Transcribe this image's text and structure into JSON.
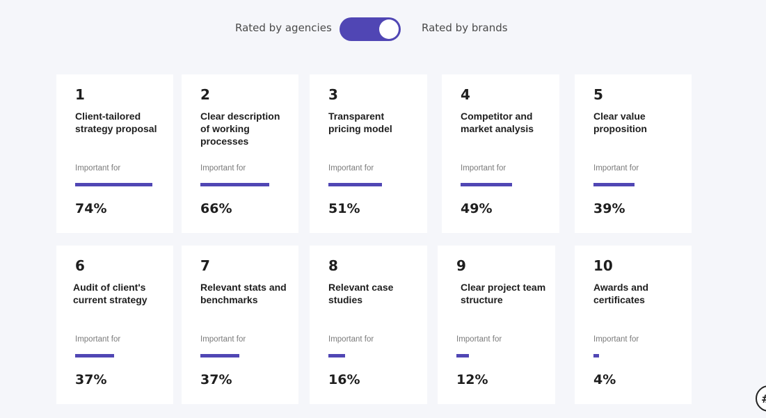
{
  "toggle": {
    "left_label": "Rated by agencies",
    "right_label": "Rated by brands",
    "state": "brands",
    "accent": "#5046b4"
  },
  "cards": [
    {
      "rank": "1",
      "title": "Client-tailored strategy proposal",
      "important_label": "Important for",
      "value": 74,
      "pct_text": "74%"
    },
    {
      "rank": "2",
      "title": "Clear description of working processes",
      "important_label": "Important for",
      "value": 66,
      "pct_text": "66%"
    },
    {
      "rank": "3",
      "title": "Transparent pricing model",
      "important_label": "Important for",
      "value": 51,
      "pct_text": "51%"
    },
    {
      "rank": "4",
      "title": "Competitor and market analysis",
      "important_label": "Important for",
      "value": 49,
      "pct_text": "49%"
    },
    {
      "rank": "5",
      "title": "Clear value proposition",
      "important_label": "Important for",
      "value": 39,
      "pct_text": "39%"
    },
    {
      "rank": "6",
      "title": "Audit of client's current strategy",
      "important_label": "Important for",
      "value": 37,
      "pct_text": "37%"
    },
    {
      "rank": "7",
      "title": "Relevant stats and benchmarks",
      "important_label": "Important for",
      "value": 37,
      "pct_text": "37%"
    },
    {
      "rank": "8",
      "title": "Relevant case studies",
      "important_label": "Important for",
      "value": 16,
      "pct_text": "16%"
    },
    {
      "rank": "9",
      "title": "Clear project team structure",
      "important_label": "Important for",
      "value": 12,
      "pct_text": "12%"
    },
    {
      "rank": "10",
      "title": "Awards and certificates",
      "important_label": "Important for",
      "value": 4,
      "pct_text": "4%"
    }
  ],
  "corner_badge_icon": "hash-icon"
}
